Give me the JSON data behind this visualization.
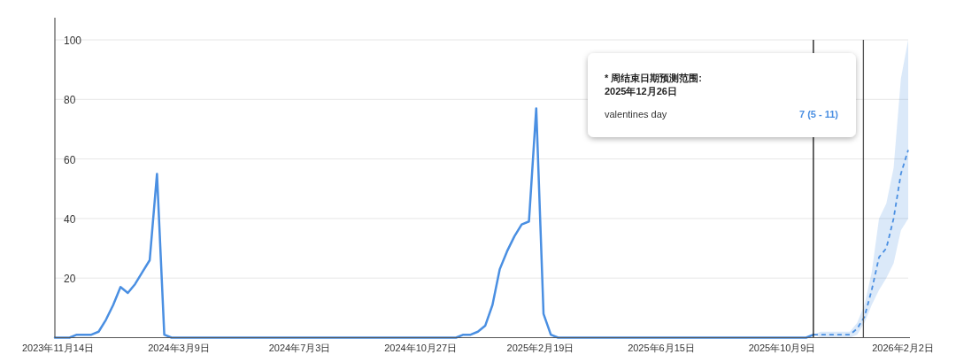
{
  "chart_data": {
    "type": "line",
    "xlim": [
      "2023-11-11",
      "2026-02-07"
    ],
    "xticks": [
      {
        "value": "2023-11-14",
        "label": "2023年11月14日"
      },
      {
        "value": "2024-03-09",
        "label": "2024年3月9日"
      },
      {
        "value": "2024-07-03",
        "label": "2024年7月3日"
      },
      {
        "value": "2024-10-27",
        "label": "2024年10月27日"
      },
      {
        "value": "2025-02-19",
        "label": "2025年2月19日"
      },
      {
        "value": "2025-06-15",
        "label": "2025年6月15日"
      },
      {
        "value": "2025-10-09",
        "label": "2025年10月9日"
      },
      {
        "value": "2026-02-02",
        "label": "2026年2月2日"
      }
    ],
    "ylim": [
      0,
      100
    ],
    "yticks": [
      20,
      40,
      60,
      80,
      100
    ],
    "grid": "y",
    "series": [
      {
        "line_style": "solid",
        "color": "#4a8fe2",
        "x": [
          "2023-11-11",
          "2023-11-18",
          "2023-11-25",
          "2023-12-02",
          "2023-12-09",
          "2023-12-16",
          "2023-12-23",
          "2023-12-30",
          "2024-01-06",
          "2024-01-13",
          "2024-01-20",
          "2024-01-27",
          "2024-02-03",
          "2024-02-10",
          "2024-02-17",
          "2024-02-24",
          "2024-03-02",
          "2024-11-23",
          "2024-11-30",
          "2024-12-07",
          "2024-12-14",
          "2024-12-21",
          "2024-12-28",
          "2025-01-04",
          "2025-01-11",
          "2025-01-18",
          "2025-01-25",
          "2025-02-01",
          "2025-02-08",
          "2025-02-15",
          "2025-02-22",
          "2025-03-01",
          "2025-03-08",
          "2025-11-01",
          "2025-11-08"
        ],
        "values": [
          0,
          0,
          0,
          1,
          1,
          1,
          2,
          6,
          11,
          17,
          15,
          18,
          22,
          26,
          55,
          1,
          0,
          0,
          0,
          1,
          1,
          2,
          4,
          11,
          23,
          29,
          34,
          38,
          39,
          77,
          8,
          1,
          0,
          0,
          1
        ]
      },
      {
        "line_style": "dashed",
        "color": "#4a8fe2",
        "x": [
          "2025-11-08",
          "2025-11-15",
          "2025-11-22",
          "2025-11-29",
          "2025-12-06",
          "2025-12-13",
          "2025-12-20",
          "2025-12-27",
          "2026-01-03",
          "2026-01-10",
          "2026-01-17",
          "2026-01-24",
          "2026-01-31",
          "2026-02-07"
        ],
        "values": [
          1,
          1,
          1,
          1,
          1,
          1,
          3,
          7,
          16,
          27,
          30,
          40,
          55,
          63
        ],
        "lower": [
          1,
          0,
          0,
          0,
          0,
          0,
          1,
          5,
          11,
          16,
          20,
          25,
          36,
          40
        ],
        "upper": [
          1,
          2,
          2,
          2,
          2,
          2,
          5,
          11,
          22,
          40,
          45,
          57,
          87,
          100
        ]
      }
    ],
    "ref_lines": [
      {
        "axis": "x",
        "value": "2025-11-08",
        "color": "#111111"
      },
      {
        "axis": "x",
        "value": "2025-12-26",
        "color": "#555555"
      }
    ],
    "annotations": [
      "* 周结束日期预测范围:",
      "2025年12月26日",
      "valentines day",
      "7 (5 - 11)"
    ]
  }
}
